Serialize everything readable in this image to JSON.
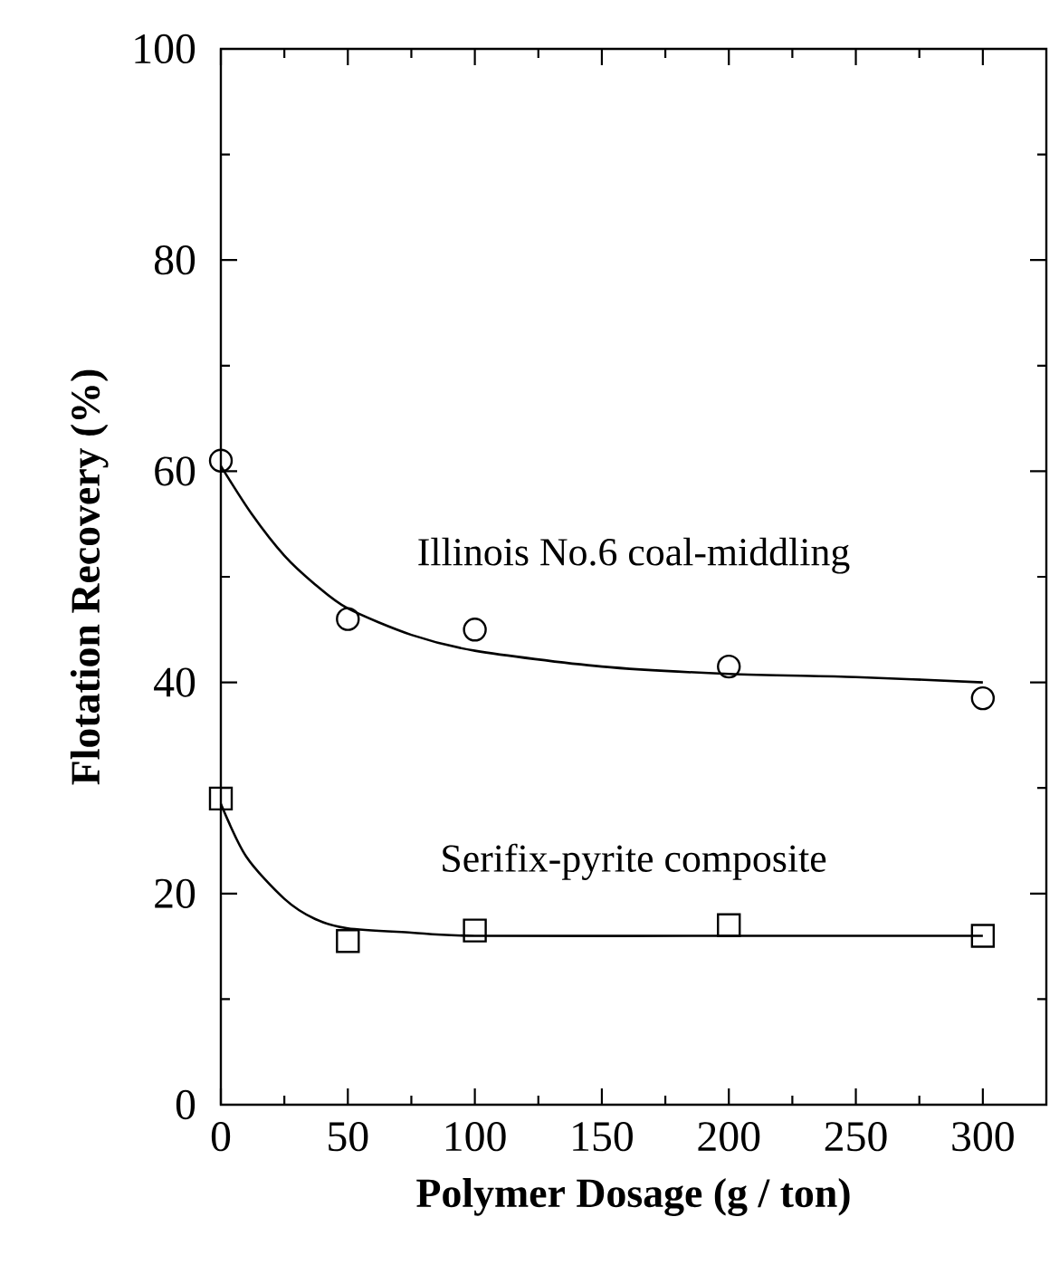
{
  "chart_data": {
    "type": "scatter",
    "xlabel": "Polymer  Dosage (g / ton)",
    "ylabel": "Flotation Recovery (%)",
    "xlim": [
      0,
      325
    ],
    "ylim": [
      0,
      100
    ],
    "xticks": [
      0,
      50,
      100,
      150,
      200,
      250,
      300
    ],
    "yticks": [
      0,
      20,
      40,
      60,
      80,
      100
    ],
    "grid": false,
    "annotations": [
      "Illinois No.6  coal-middling",
      "Serifix-pyrite composite"
    ],
    "series": [
      {
        "marker": "circle",
        "color": "#000000",
        "x": [
          0,
          50,
          100,
          200,
          300
        ],
        "values": [
          61,
          46,
          45,
          41.5,
          38.5
        ]
      },
      {
        "marker": "square",
        "color": "#000000",
        "x": [
          0,
          50,
          100,
          200,
          300
        ],
        "values": [
          29,
          15.5,
          16.5,
          17,
          16
        ]
      },
      {
        "type": "line",
        "marker": "none",
        "color": "#000000",
        "x": [
          0,
          12,
          25,
          37,
          50,
          75,
          100,
          150,
          200,
          250,
          300
        ],
        "values": [
          60.5,
          56,
          52,
          49.3,
          47,
          44.5,
          43,
          41.5,
          40.8,
          40.5,
          40
        ]
      },
      {
        "type": "line",
        "marker": "none",
        "color": "#000000",
        "x": [
          0,
          10,
          25,
          37,
          50,
          75,
          100,
          200,
          300
        ],
        "values": [
          28.5,
          23.5,
          19.5,
          17.6,
          16.7,
          16.3,
          16,
          16,
          16
        ]
      }
    ]
  }
}
